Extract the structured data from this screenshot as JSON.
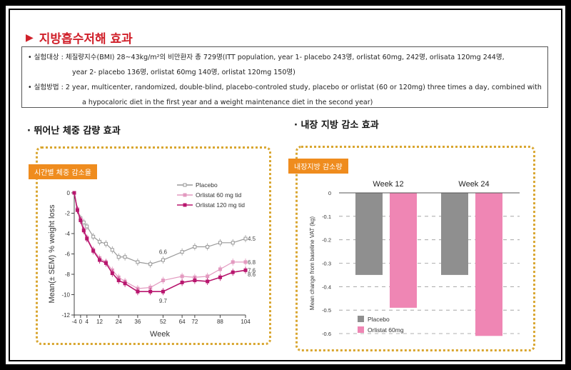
{
  "title": "지방흡수저해 효과",
  "info": {
    "line1": "• 실험대상 : 체질량지수(BMI) 28~43kg/m²의 비만환자 총 729명(ITT population, year 1- placebo 243명, orlistat 60mg, 242명, orlisata 120mg 244명,",
    "line2": "year 2- placebo 136명, orlistat 60mg 140명, orlistat 120mg 150명)",
    "line3": "• 실험방법 : 2 year, multicenter, randomized, double-blind, placebo-controled study, placebo or orlistat (60 or 120mg) three times a day, combined with",
    "line4": "a hypocaloric diet in the first year and a weight maintenance diet in the second year)"
  },
  "left_heading": "· 뛰어난 체중 감량 효과",
  "right_heading": "· 내장 지방 감소 효과",
  "left_tag": "시간별 체중 감소율",
  "right_tag": "내장지방 감소량",
  "chart_data": [
    {
      "type": "line",
      "xlabel": "Week",
      "ylabel": "Mean(± SEM) % weight loss",
      "ylim": [
        -12,
        0
      ],
      "xlim": [
        -4,
        104
      ],
      "xticks": [
        -4,
        0,
        4,
        12,
        24,
        36,
        52,
        64,
        72,
        88,
        104
      ],
      "yticks": [
        0,
        -2,
        -4,
        -6,
        -8,
        -10,
        -12
      ],
      "legend": "top-right",
      "x": [
        -4,
        -2,
        0,
        2,
        4,
        8,
        12,
        16,
        20,
        24,
        28,
        36,
        44,
        52,
        64,
        72,
        80,
        88,
        96,
        104
      ],
      "series": [
        {
          "name": "Placebo",
          "color": "#9a9a9a",
          "values": [
            0,
            -1.6,
            -2.5,
            -2.9,
            -3.3,
            -4.3,
            -4.8,
            -5.0,
            -5.6,
            -6.3,
            -6.3,
            -6.8,
            -7.0,
            -6.6,
            -5.8,
            -5.3,
            -5.3,
            -4.9,
            -4.9,
            -4.5
          ]
        },
        {
          "name": "Orlistat 60 mg tid",
          "color": "#e39ac0",
          "values": [
            0,
            -1.6,
            -2.6,
            -3.6,
            -4.4,
            -5.6,
            -6.4,
            -6.8,
            -7.6,
            -8.3,
            -8.7,
            -9.4,
            -9.3,
            -8.6,
            -8.2,
            -8.3,
            -8.2,
            -7.5,
            -6.8,
            -6.8
          ]
        },
        {
          "name": "Orlistat 120 mg tid",
          "color": "#b8166e",
          "values": [
            0,
            -1.7,
            -2.7,
            -3.7,
            -4.5,
            -5.7,
            -6.6,
            -6.9,
            -7.9,
            -8.6,
            -8.9,
            -9.7,
            -9.7,
            -9.7,
            -8.8,
            -8.6,
            -8.7,
            -8.3,
            -7.8,
            -7.6
          ]
        }
      ],
      "annotations": [
        "6.6",
        "8.6",
        "9.7",
        "4.5",
        "6.8",
        "7.6"
      ]
    },
    {
      "type": "bar",
      "ylabel": "Mean change from baseline VAT (kg)",
      "ylim": [
        -0.6,
        0
      ],
      "yticks": [
        "0",
        "-0.1",
        "-0.2",
        "-0.3",
        "-0.4",
        "-0.5",
        "-0.6"
      ],
      "grid": true,
      "legend": "bottom-left",
      "categories": [
        "Week 12",
        "Week 24"
      ],
      "series": [
        {
          "name": "Placebo",
          "color": "#8f8f8f",
          "values": [
            -0.35,
            -0.35
          ]
        },
        {
          "name": "Orlistat 60mg",
          "color": "#ef86b4",
          "values": [
            -0.49,
            -0.61
          ]
        }
      ]
    }
  ]
}
